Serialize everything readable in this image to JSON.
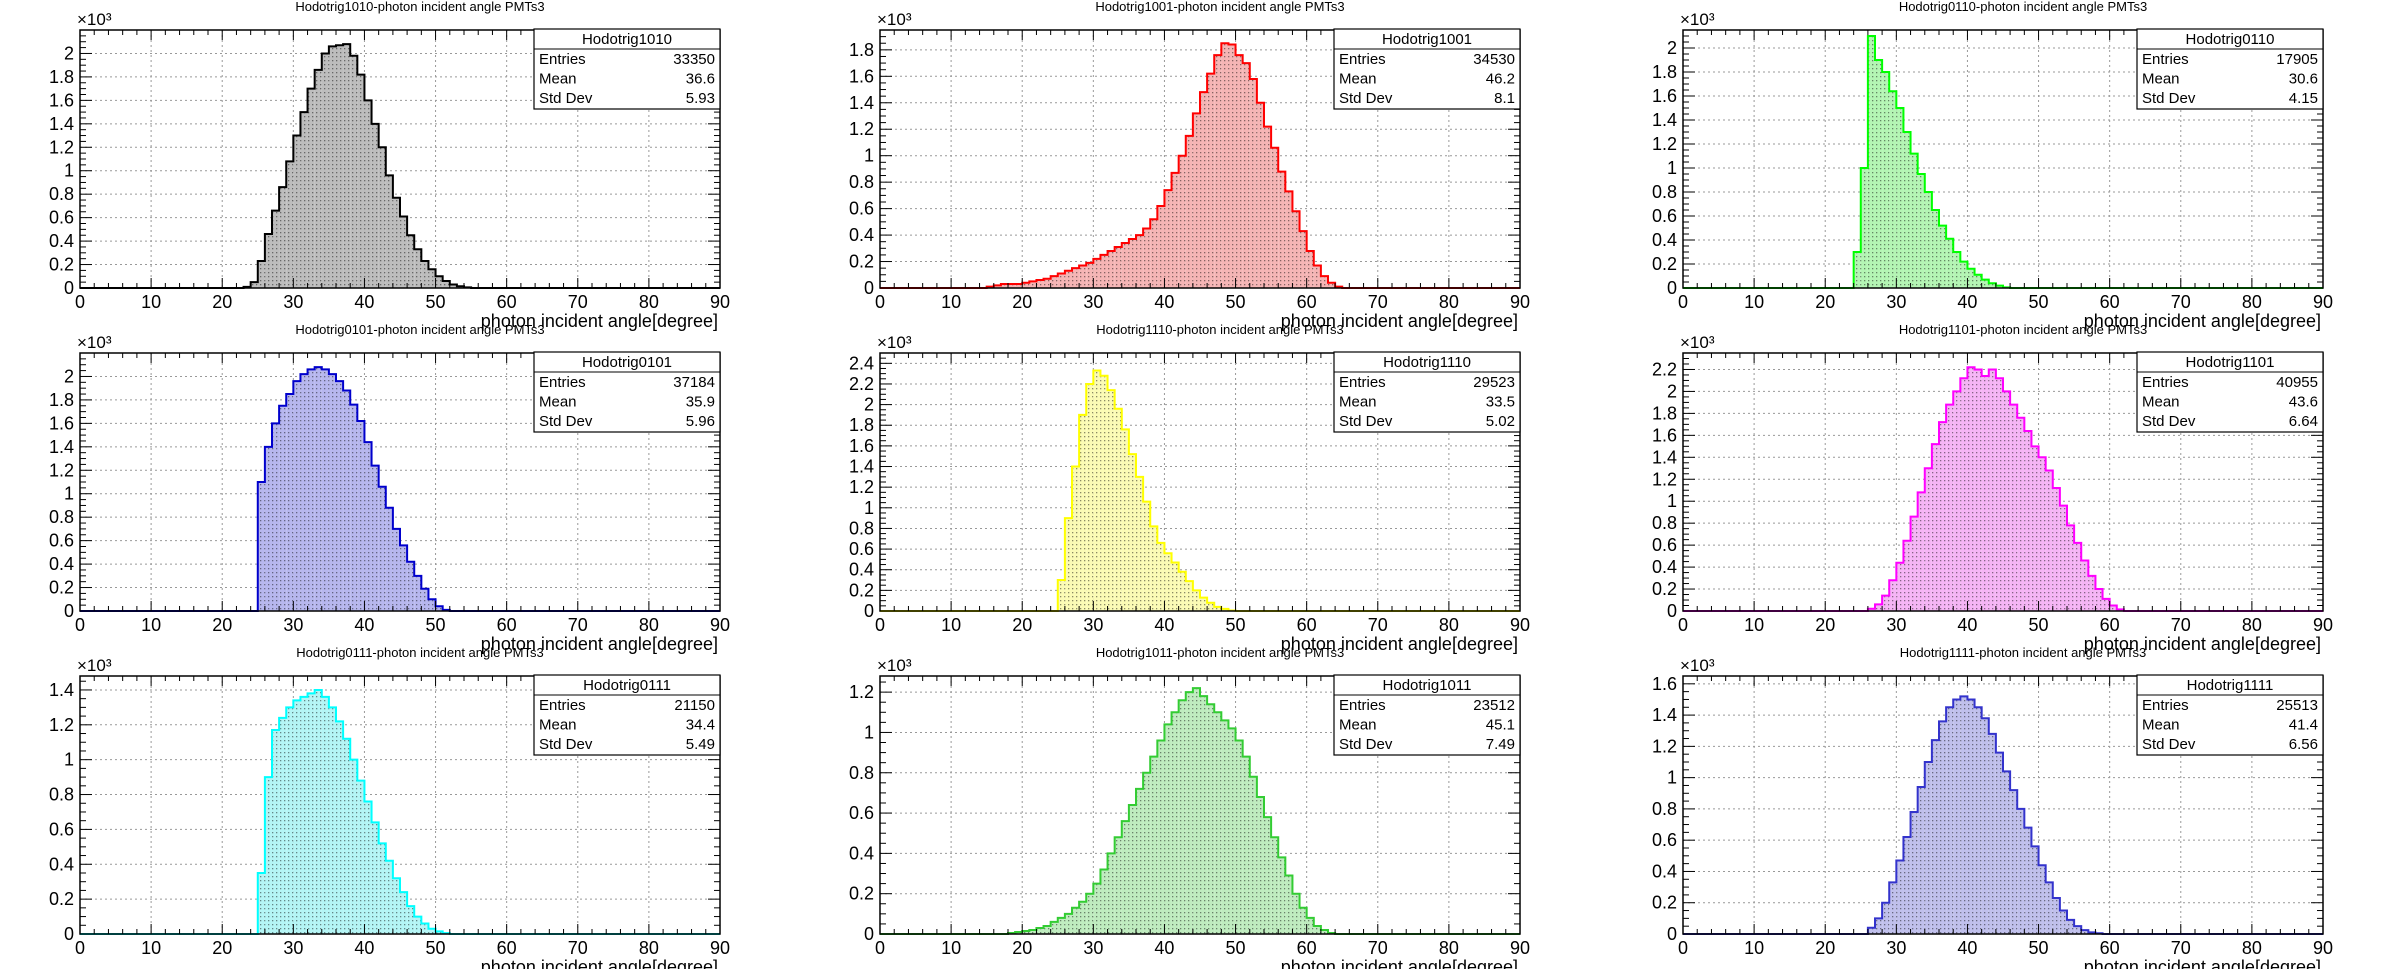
{
  "chart_data": [
    {
      "type": "bar",
      "title": "Hodotrig1010-photon incident angle PMTs3",
      "xlabel": "photon incident angle[degree]",
      "ylabel": "",
      "exponent_label": "×10³",
      "color": "#000000",
      "fill": "#bdbdbd",
      "xlim": [
        0,
        90
      ],
      "ylim": [
        0,
        2200
      ],
      "yticks": [
        0,
        200,
        400,
        600,
        800,
        1000,
        1200,
        1400,
        1600,
        1800,
        2000
      ],
      "ytick_labels": [
        "0",
        "0.2",
        "0.4",
        "0.6",
        "0.8",
        "1",
        "1.2",
        "1.4",
        "1.6",
        "1.8",
        "2"
      ],
      "xticks": [
        0,
        10,
        20,
        30,
        40,
        50,
        60,
        70,
        80,
        90
      ],
      "xtick_labels": [
        "0",
        "10",
        "20",
        "30",
        "40",
        "50",
        "60",
        "70",
        "80",
        "90"
      ],
      "grid": true,
      "legend": "top-right",
      "stats": {
        "name": "Hodotrig1010",
        "entries_label": "Entries",
        "entries": "33350",
        "mean_label": "Mean",
        "mean": "36.6",
        "std_label": "Std Dev",
        "std": "5.93"
      },
      "bin_width": 1,
      "x": [
        23,
        24,
        25,
        26,
        27,
        28,
        29,
        30,
        31,
        32,
        33,
        34,
        35,
        36,
        37,
        38,
        39,
        40,
        41,
        42,
        43,
        44,
        45,
        46,
        47,
        48,
        49,
        50,
        51,
        52,
        53,
        54
      ],
      "values": [
        10,
        50,
        230,
        460,
        660,
        860,
        1080,
        1300,
        1500,
        1700,
        1860,
        2000,
        2060,
        2070,
        2080,
        1980,
        1820,
        1600,
        1400,
        1200,
        960,
        770,
        610,
        450,
        330,
        230,
        160,
        100,
        60,
        30,
        15,
        5
      ]
    },
    {
      "type": "bar",
      "title": "Hodotrig1001-photon incident angle PMTs3",
      "xlabel": "photon incident angle[degree]",
      "ylabel": "",
      "exponent_label": "×10³",
      "color": "#ff0000",
      "fill": "#f5b5b5",
      "xlim": [
        0,
        90
      ],
      "ylim": [
        0,
        1950
      ],
      "yticks": [
        0,
        200,
        400,
        600,
        800,
        1000,
        1200,
        1400,
        1600,
        1800
      ],
      "ytick_labels": [
        "0",
        "0.2",
        "0.4",
        "0.6",
        "0.8",
        "1",
        "1.2",
        "1.4",
        "1.6",
        "1.8"
      ],
      "xticks": [
        0,
        10,
        20,
        30,
        40,
        50,
        60,
        70,
        80,
        90
      ],
      "xtick_labels": [
        "0",
        "10",
        "20",
        "30",
        "40",
        "50",
        "60",
        "70",
        "80",
        "90"
      ],
      "grid": true,
      "legend": "top-right",
      "stats": {
        "name": "Hodotrig1001",
        "entries_label": "Entries",
        "entries": "34530",
        "mean_label": "Mean",
        "mean": "46.2",
        "std_label": "Std Dev",
        "std": "8.1"
      },
      "bin_width": 1,
      "x": [
        15,
        16,
        17,
        18,
        19,
        20,
        21,
        22,
        23,
        24,
        25,
        26,
        27,
        28,
        29,
        30,
        31,
        32,
        33,
        34,
        35,
        36,
        37,
        38,
        39,
        40,
        41,
        42,
        43,
        44,
        45,
        46,
        47,
        48,
        49,
        50,
        51,
        52,
        53,
        54,
        55,
        56,
        57,
        58,
        59,
        60,
        61,
        62,
        63,
        64
      ],
      "values": [
        10,
        20,
        30,
        30,
        30,
        40,
        50,
        60,
        70,
        90,
        110,
        130,
        150,
        170,
        190,
        220,
        250,
        280,
        310,
        340,
        370,
        400,
        450,
        520,
        620,
        740,
        870,
        1000,
        1150,
        1320,
        1480,
        1620,
        1760,
        1850,
        1840,
        1760,
        1700,
        1580,
        1400,
        1220,
        1060,
        880,
        730,
        580,
        430,
        280,
        170,
        90,
        40,
        10
      ]
    },
    {
      "type": "bar",
      "title": "Hodotrig0110-photon incident angle PMTs3",
      "xlabel": "photon incident angle[degree]",
      "ylabel": "",
      "exponent_label": "×10³",
      "color": "#00ff00",
      "fill": "#b4f5b4",
      "xlim": [
        0,
        90
      ],
      "ylim": [
        0,
        2150
      ],
      "yticks": [
        0,
        200,
        400,
        600,
        800,
        1000,
        1200,
        1400,
        1600,
        1800,
        2000
      ],
      "ytick_labels": [
        "0",
        "0.2",
        "0.4",
        "0.6",
        "0.8",
        "1",
        "1.2",
        "1.4",
        "1.6",
        "1.8",
        "2"
      ],
      "xticks": [
        0,
        10,
        20,
        30,
        40,
        50,
        60,
        70,
        80,
        90
      ],
      "xtick_labels": [
        "0",
        "10",
        "20",
        "30",
        "40",
        "50",
        "60",
        "70",
        "80",
        "90"
      ],
      "grid": true,
      "legend": "top-right",
      "stats": {
        "name": "Hodotrig0110",
        "entries_label": "Entries",
        "entries": "17905",
        "mean_label": "Mean",
        "mean": "30.6",
        "std_label": "Std Dev",
        "std": "4.15"
      },
      "bin_width": 1,
      "x": [
        24,
        25,
        26,
        27,
        28,
        29,
        30,
        31,
        32,
        33,
        34,
        35,
        36,
        37,
        38,
        39,
        40,
        41,
        42,
        43,
        44,
        45
      ],
      "values": [
        300,
        1000,
        2100,
        1900,
        1800,
        1640,
        1500,
        1300,
        1120,
        950,
        800,
        650,
        520,
        410,
        300,
        220,
        160,
        110,
        70,
        40,
        20,
        5
      ]
    },
    {
      "type": "bar",
      "title": "Hodotrig0101-photon incident angle PMTs3",
      "xlabel": "photon incident angle[degree]",
      "ylabel": "",
      "exponent_label": "×10³",
      "color": "#0000cc",
      "fill": "#b7b7ee",
      "xlim": [
        0,
        90
      ],
      "ylim": [
        0,
        2200
      ],
      "yticks": [
        0,
        200,
        400,
        600,
        800,
        1000,
        1200,
        1400,
        1600,
        1800,
        2000
      ],
      "ytick_labels": [
        "0",
        "0.2",
        "0.4",
        "0.6",
        "0.8",
        "1",
        "1.2",
        "1.4",
        "1.6",
        "1.8",
        "2"
      ],
      "xticks": [
        0,
        10,
        20,
        30,
        40,
        50,
        60,
        70,
        80,
        90
      ],
      "xtick_labels": [
        "0",
        "10",
        "20",
        "30",
        "40",
        "50",
        "60",
        "70",
        "80",
        "90"
      ],
      "grid": true,
      "legend": "top-right",
      "stats": {
        "name": "Hodotrig0101",
        "entries_label": "Entries",
        "entries": "37184",
        "mean_label": "Mean",
        "mean": "35.9",
        "std_label": "Std Dev",
        "std": "5.96"
      },
      "bin_width": 1,
      "x": [
        25,
        26,
        27,
        28,
        29,
        30,
        31,
        32,
        33,
        34,
        35,
        36,
        37,
        38,
        39,
        40,
        41,
        42,
        43,
        44,
        45,
        46,
        47,
        48,
        49,
        50,
        51
      ],
      "values": [
        1100,
        1400,
        1600,
        1750,
        1850,
        1960,
        2020,
        2060,
        2080,
        2060,
        2020,
        1960,
        1880,
        1760,
        1620,
        1440,
        1240,
        1060,
        880,
        700,
        560,
        420,
        300,
        190,
        100,
        40,
        10
      ]
    },
    {
      "type": "bar",
      "title": "Hodotrig1110-photon incident angle PMTs3",
      "xlabel": "photon incident angle[degree]",
      "ylabel": "",
      "exponent_label": "×10³",
      "color": "#ffff00",
      "fill": "#fbfbb5",
      "xlim": [
        0,
        90
      ],
      "ylim": [
        0,
        2500
      ],
      "yticks": [
        0,
        200,
        400,
        600,
        800,
        1000,
        1200,
        1400,
        1600,
        1800,
        2000,
        2200,
        2400
      ],
      "ytick_labels": [
        "0",
        "0.2",
        "0.4",
        "0.6",
        "0.8",
        "1",
        "1.2",
        "1.4",
        "1.6",
        "1.8",
        "2",
        "2.2",
        "2.4"
      ],
      "xticks": [
        0,
        10,
        20,
        30,
        40,
        50,
        60,
        70,
        80,
        90
      ],
      "xtick_labels": [
        "0",
        "10",
        "20",
        "30",
        "40",
        "50",
        "60",
        "70",
        "80",
        "90"
      ],
      "grid": true,
      "legend": "top-right",
      "stats": {
        "name": "Hodotrig1110",
        "entries_label": "Entries",
        "entries": "29523",
        "mean_label": "Mean",
        "mean": "33.5",
        "std_label": "Std Dev",
        "std": "5.02"
      },
      "bin_width": 1,
      "x": [
        25,
        26,
        27,
        28,
        29,
        30,
        31,
        32,
        33,
        34,
        35,
        36,
        37,
        38,
        39,
        40,
        41,
        42,
        43,
        44,
        45,
        46,
        47,
        48,
        49
      ],
      "values": [
        300,
        900,
        1400,
        1900,
        2200,
        2330,
        2280,
        2140,
        1960,
        1760,
        1520,
        1300,
        1060,
        820,
        660,
        560,
        470,
        380,
        290,
        200,
        130,
        80,
        40,
        20,
        5
      ]
    },
    {
      "type": "bar",
      "title": "Hodotrig1101-photon incident angle PMTs3",
      "xlabel": "photon incident angle[degree]",
      "ylabel": "",
      "exponent_label": "×10³",
      "color": "#ff00ff",
      "fill": "#f5b5f5",
      "xlim": [
        0,
        90
      ],
      "ylim": [
        0,
        2350
      ],
      "yticks": [
        0,
        200,
        400,
        600,
        800,
        1000,
        1200,
        1400,
        1600,
        1800,
        2000,
        2200
      ],
      "ytick_labels": [
        "0",
        "0.2",
        "0.4",
        "0.6",
        "0.8",
        "1",
        "1.2",
        "1.4",
        "1.6",
        "1.8",
        "2",
        "2.2"
      ],
      "xticks": [
        0,
        10,
        20,
        30,
        40,
        50,
        60,
        70,
        80,
        90
      ],
      "xtick_labels": [
        "0",
        "10",
        "20",
        "30",
        "40",
        "50",
        "60",
        "70",
        "80",
        "90"
      ],
      "grid": true,
      "legend": "top-right",
      "stats": {
        "name": "Hodotrig1101",
        "entries_label": "Entries",
        "entries": "40955",
        "mean_label": "Mean",
        "mean": "43.6",
        "std_label": "Std Dev",
        "std": "6.64"
      },
      "bin_width": 1,
      "x": [
        26,
        27,
        28,
        29,
        30,
        31,
        32,
        33,
        34,
        35,
        36,
        37,
        38,
        39,
        40,
        41,
        42,
        43,
        44,
        45,
        46,
        47,
        48,
        49,
        50,
        51,
        52,
        53,
        54,
        55,
        56,
        57,
        58,
        59,
        60,
        61
      ],
      "values": [
        20,
        60,
        140,
        280,
        440,
        640,
        860,
        1080,
        1300,
        1520,
        1720,
        1880,
        2000,
        2120,
        2220,
        2200,
        2140,
        2200,
        2120,
        2000,
        1880,
        1760,
        1640,
        1500,
        1400,
        1280,
        1120,
        960,
        780,
        620,
        460,
        320,
        200,
        110,
        50,
        15
      ]
    },
    {
      "type": "bar",
      "title": "Hodotrig0111-photon incident angle PMTs3",
      "xlabel": "photon incident angle[degree]",
      "ylabel": "",
      "exponent_label": "×10³",
      "color": "#00ffff",
      "fill": "#b4f5f5",
      "xlim": [
        0,
        90
      ],
      "ylim": [
        0,
        1480
      ],
      "yticks": [
        0,
        200,
        400,
        600,
        800,
        1000,
        1200,
        1400
      ],
      "ytick_labels": [
        "0",
        "0.2",
        "0.4",
        "0.6",
        "0.8",
        "1",
        "1.2",
        "1.4"
      ],
      "xticks": [
        0,
        10,
        20,
        30,
        40,
        50,
        60,
        70,
        80,
        90
      ],
      "xtick_labels": [
        "0",
        "10",
        "20",
        "30",
        "40",
        "50",
        "60",
        "70",
        "80",
        "90"
      ],
      "grid": true,
      "legend": "top-right",
      "stats": {
        "name": "Hodotrig0111",
        "entries_label": "Entries",
        "entries": "21150",
        "mean_label": "Mean",
        "mean": "34.4",
        "std_label": "Std Dev",
        "std": "5.49"
      },
      "bin_width": 1,
      "x": [
        25,
        26,
        27,
        28,
        29,
        30,
        31,
        32,
        33,
        34,
        35,
        36,
        37,
        38,
        39,
        40,
        41,
        42,
        43,
        44,
        45,
        46,
        47,
        48,
        49,
        50,
        51
      ],
      "values": [
        350,
        900,
        1170,
        1240,
        1300,
        1340,
        1360,
        1380,
        1400,
        1360,
        1300,
        1220,
        1120,
        1000,
        880,
        760,
        640,
        520,
        420,
        320,
        240,
        160,
        100,
        60,
        30,
        15,
        5
      ]
    },
    {
      "type": "bar",
      "title": "Hodotrig1011-photon incident angle PMTs3",
      "xlabel": "photon incident angle[degree]",
      "ylabel": "",
      "exponent_label": "×10³",
      "color": "#33cc33",
      "fill": "#bfecbf",
      "xlim": [
        0,
        90
      ],
      "ylim": [
        0,
        1280
      ],
      "yticks": [
        0,
        200,
        400,
        600,
        800,
        1000,
        1200
      ],
      "ytick_labels": [
        "0",
        "0.2",
        "0.4",
        "0.6",
        "0.8",
        "1",
        "1.2"
      ],
      "xticks": [
        0,
        10,
        20,
        30,
        40,
        50,
        60,
        70,
        80,
        90
      ],
      "xtick_labels": [
        "0",
        "10",
        "20",
        "30",
        "40",
        "50",
        "60",
        "70",
        "80",
        "90"
      ],
      "grid": true,
      "legend": "top-right",
      "stats": {
        "name": "Hodotrig1011",
        "entries_label": "Entries",
        "entries": "23512",
        "mean_label": "Mean",
        "mean": "45.1",
        "std_label": "Std Dev",
        "std": "7.49"
      },
      "bin_width": 1,
      "x": [
        18,
        19,
        20,
        21,
        22,
        23,
        24,
        25,
        26,
        27,
        28,
        29,
        30,
        31,
        32,
        33,
        34,
        35,
        36,
        37,
        38,
        39,
        40,
        41,
        42,
        43,
        44,
        45,
        46,
        47,
        48,
        49,
        50,
        51,
        52,
        53,
        54,
        55,
        56,
        57,
        58,
        59,
        60,
        61,
        62,
        63
      ],
      "values": [
        5,
        10,
        15,
        20,
        30,
        40,
        60,
        80,
        100,
        130,
        160,
        200,
        250,
        320,
        400,
        480,
        560,
        640,
        720,
        800,
        880,
        960,
        1040,
        1100,
        1160,
        1200,
        1220,
        1180,
        1140,
        1100,
        1060,
        1020,
        960,
        880,
        780,
        680,
        580,
        480,
        380,
        290,
        200,
        130,
        80,
        40,
        20,
        5
      ]
    },
    {
      "type": "bar",
      "title": "Hodotrig1111-photon incident angle PMTs3",
      "xlabel": "photon incident angle[degree]",
      "ylabel": "",
      "exponent_label": "×10³",
      "color": "#3333cc",
      "fill": "#c0c0ec",
      "xlim": [
        0,
        90
      ],
      "ylim": [
        0,
        1650
      ],
      "yticks": [
        0,
        200,
        400,
        600,
        800,
        1000,
        1200,
        1400,
        1600
      ],
      "ytick_labels": [
        "0",
        "0.2",
        "0.4",
        "0.6",
        "0.8",
        "1",
        "1.2",
        "1.4",
        "1.6"
      ],
      "xticks": [
        0,
        10,
        20,
        30,
        40,
        50,
        60,
        70,
        80,
        90
      ],
      "xtick_labels": [
        "0",
        "10",
        "20",
        "30",
        "40",
        "50",
        "60",
        "70",
        "80",
        "90"
      ],
      "grid": true,
      "legend": "top-right",
      "stats": {
        "name": "Hodotrig1111",
        "entries_label": "Entries",
        "entries": "25513",
        "mean_label": "Mean",
        "mean": "41.4",
        "std_label": "Std Dev",
        "std": "6.56"
      },
      "bin_width": 1,
      "x": [
        26,
        27,
        28,
        29,
        30,
        31,
        32,
        33,
        34,
        35,
        36,
        37,
        38,
        39,
        40,
        41,
        42,
        43,
        44,
        45,
        46,
        47,
        48,
        49,
        50,
        51,
        52,
        53,
        54,
        55,
        56,
        57,
        58
      ],
      "values": [
        40,
        100,
        200,
        330,
        470,
        620,
        780,
        940,
        1100,
        1240,
        1360,
        1450,
        1500,
        1520,
        1500,
        1450,
        1380,
        1280,
        1160,
        1040,
        920,
        800,
        680,
        560,
        440,
        330,
        230,
        150,
        90,
        50,
        25,
        10,
        5
      ]
    }
  ]
}
